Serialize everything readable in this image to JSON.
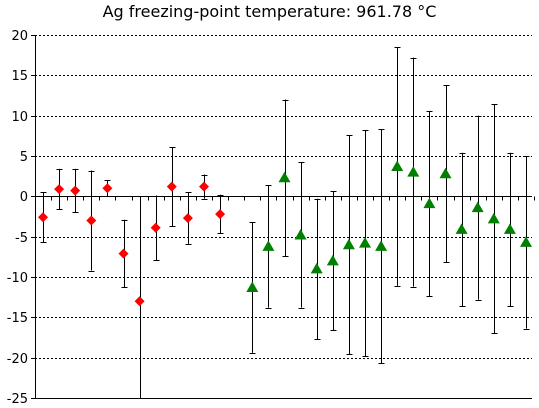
{
  "chart_data": {
    "type": "scatter",
    "title": "Ag freezing-point temperature: 961.78 °C",
    "xlabel": "",
    "ylabel": "",
    "ylim": [
      -25,
      20
    ],
    "yticks": [
      -25,
      -20,
      -15,
      -10,
      -5,
      0,
      5,
      10,
      15,
      20
    ],
    "grid": "horizontal dashed",
    "series": [
      {
        "marker": "diamond",
        "color": "#ff0000",
        "points": [
          {
            "x": 1,
            "y": -2.6,
            "err": 3.1
          },
          {
            "x": 2,
            "y": 0.9,
            "err": 2.5
          },
          {
            "x": 3,
            "y": 0.7,
            "err": 2.7
          },
          {
            "x": 4,
            "y": -3.0,
            "err": 6.2
          },
          {
            "x": 5,
            "y": 1.0,
            "err": 1.0
          },
          {
            "x": 6,
            "y": -7.1,
            "err": 4.2
          },
          {
            "x": 7,
            "y": -13.0,
            "err": 13.0
          },
          {
            "x": 8,
            "y": -3.9,
            "err": 4.0
          },
          {
            "x": 9,
            "y": 1.2,
            "err": 4.9
          },
          {
            "x": 10,
            "y": -2.7,
            "err": 3.2
          },
          {
            "x": 11,
            "y": 1.2,
            "err": 1.5
          },
          {
            "x": 12,
            "y": -2.2,
            "err": 2.4
          }
        ]
      },
      {
        "marker": "triangle",
        "color": "#008000",
        "points": [
          {
            "x": 14,
            "y": -11.3,
            "err": 8.1
          },
          {
            "x": 15,
            "y": -6.2,
            "err": 7.6
          },
          {
            "x": 16,
            "y": 2.3,
            "err": 9.7
          },
          {
            "x": 17,
            "y": -4.8,
            "err": 9.0
          },
          {
            "x": 18,
            "y": -9.0,
            "err": 8.7
          },
          {
            "x": 19,
            "y": -8.0,
            "err": 8.6
          },
          {
            "x": 20,
            "y": -6.0,
            "err": 13.6
          },
          {
            "x": 21,
            "y": -5.8,
            "err": 14.0
          },
          {
            "x": 22,
            "y": -6.2,
            "err": 14.5
          },
          {
            "x": 23,
            "y": 3.7,
            "err": 14.8
          },
          {
            "x": 24,
            "y": 3.0,
            "err": 14.2
          },
          {
            "x": 25,
            "y": -0.9,
            "err": 11.5
          },
          {
            "x": 26,
            "y": 2.8,
            "err": 11.0
          },
          {
            "x": 27,
            "y": -4.1,
            "err": 9.5
          },
          {
            "x": 28,
            "y": -1.4,
            "err": 11.4
          },
          {
            "x": 29,
            "y": -2.8,
            "err": 14.2
          },
          {
            "x": 30,
            "y": -4.1,
            "err": 9.5
          },
          {
            "x": 31,
            "y": -5.7,
            "err": 10.7
          }
        ]
      }
    ]
  }
}
